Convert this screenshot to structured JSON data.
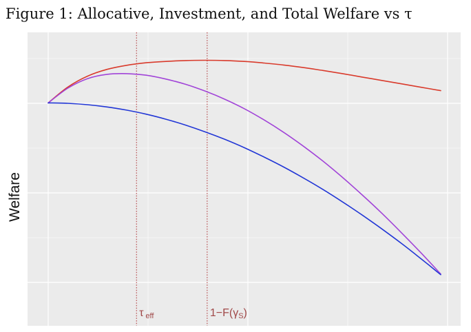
{
  "figure_title": "Figure 1: Allocative, Investment, and Total Welfare vs τ",
  "chart_data": {
    "type": "line",
    "title": "",
    "xlabel": "",
    "ylabel": "Welfare",
    "xlim": [
      0,
      1
    ],
    "ylim": [
      0,
      1
    ],
    "grid": true,
    "legend": "none",
    "series": [
      {
        "color": "#d93a2b",
        "x": [
          0.0,
          0.05,
          0.1,
          0.15,
          0.2,
          0.25,
          0.3,
          0.35,
          0.4,
          0.45,
          0.5,
          0.55,
          0.6,
          0.65,
          0.7,
          0.75,
          0.8,
          0.85,
          0.9,
          0.95,
          1.0
        ],
        "y": [
          0.78,
          0.85,
          0.898,
          0.928,
          0.946,
          0.957,
          0.963,
          0.967,
          0.968,
          0.967,
          0.963,
          0.956,
          0.947,
          0.936,
          0.923,
          0.909,
          0.894,
          0.879,
          0.864,
          0.849,
          0.834
        ]
      },
      {
        "color": "#a144d8",
        "x": [
          0.0,
          0.05,
          0.1,
          0.15,
          0.2,
          0.25,
          0.3,
          0.35,
          0.4,
          0.45,
          0.5,
          0.55,
          0.6,
          0.65,
          0.7,
          0.75,
          0.8,
          0.85,
          0.9,
          0.95,
          1.0
        ],
        "y": [
          0.78,
          0.845,
          0.887,
          0.906,
          0.909,
          0.902,
          0.885,
          0.862,
          0.832,
          0.796,
          0.754,
          0.705,
          0.65,
          0.589,
          0.523,
          0.451,
          0.374,
          0.293,
          0.207,
          0.118,
          0.025
        ]
      },
      {
        "color": "#2136d6",
        "x": [
          0.0,
          0.05,
          0.1,
          0.15,
          0.2,
          0.25,
          0.3,
          0.35,
          0.4,
          0.45,
          0.5,
          0.55,
          0.6,
          0.65,
          0.7,
          0.75,
          0.8,
          0.85,
          0.9,
          0.95,
          1.0
        ],
        "y": [
          0.78,
          0.778,
          0.772,
          0.762,
          0.748,
          0.73,
          0.708,
          0.682,
          0.652,
          0.619,
          0.582,
          0.541,
          0.497,
          0.449,
          0.398,
          0.343,
          0.285,
          0.224,
          0.16,
          0.092,
          0.022
        ]
      }
    ],
    "annotations": [
      {
        "x": 0.225,
        "label_main": "τ",
        "label_sub": "eff"
      },
      {
        "x": 0.405,
        "label_main": "1−F(",
        "label_sym": "γ",
        "label_sub": "S",
        "label_close": ")"
      }
    ],
    "colors": {
      "panel": "#ebebeb",
      "grid": "#ffffff",
      "vline": "#b0393c"
    }
  }
}
